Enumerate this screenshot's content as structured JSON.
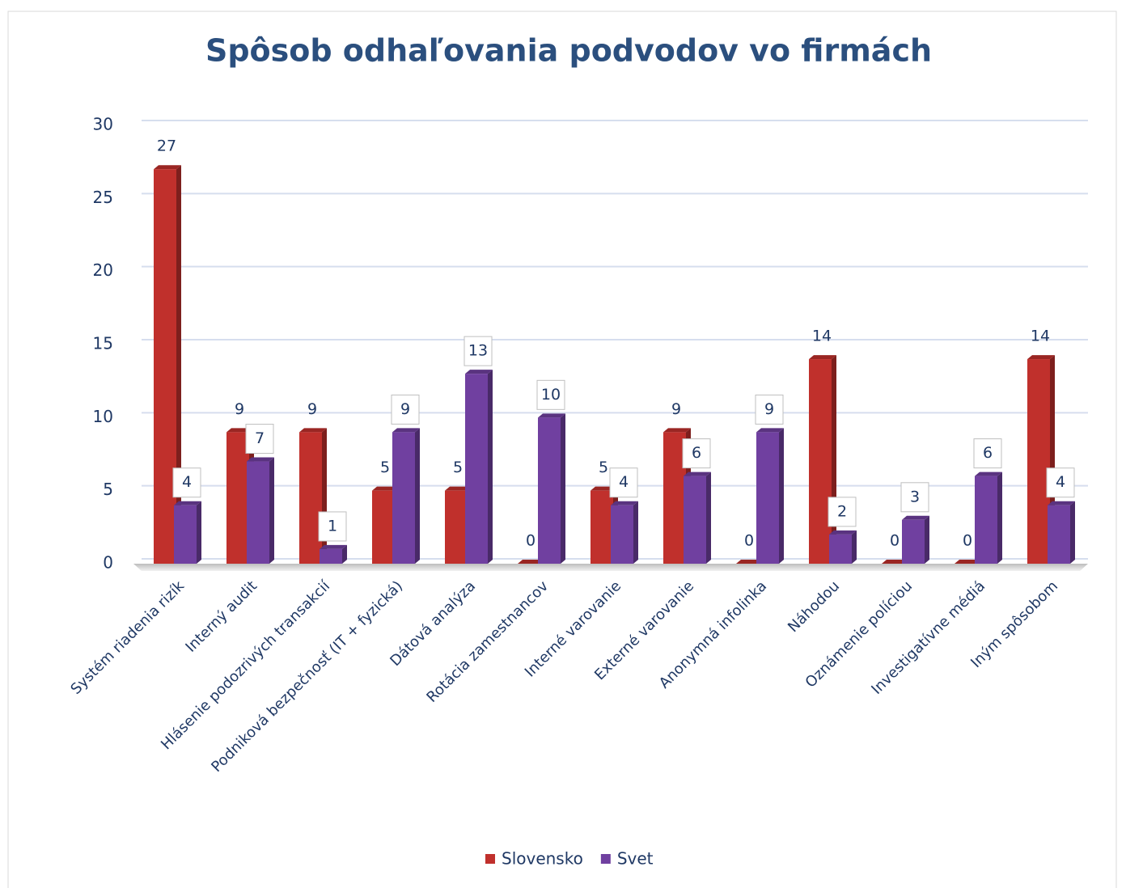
{
  "chart_data": {
    "type": "bar",
    "title": "Spôsob odhaľovania podvodov vo firmách",
    "categories": [
      "Systém riadenia rizík",
      "Interný audit",
      "Hlásenie podozrivých transakcií",
      "Podniková bezpečnosť (IT + fyzická)",
      "Dátová analýza",
      "Rotácia zamestnancov",
      "Interné varovanie",
      "Externé varovanie",
      "Anonymná infolinka",
      "Náhodou",
      "Oznámenie políciou",
      "Investigatívne médiá",
      "Iným spôsobom"
    ],
    "series": [
      {
        "name": "Slovensko",
        "color": "#c0302c",
        "values": [
          27,
          9,
          9,
          5,
          5,
          0,
          5,
          9,
          0,
          14,
          0,
          0,
          14
        ]
      },
      {
        "name": "Svet",
        "color": "#7040a0",
        "values": [
          4,
          7,
          1,
          9,
          13,
          10,
          4,
          6,
          9,
          2,
          3,
          6,
          4
        ]
      }
    ],
    "ylim": [
      0,
      30
    ],
    "yticks": [
      0,
      5,
      10,
      15,
      20,
      25,
      30
    ],
    "grid": true,
    "legend": "bottom"
  }
}
